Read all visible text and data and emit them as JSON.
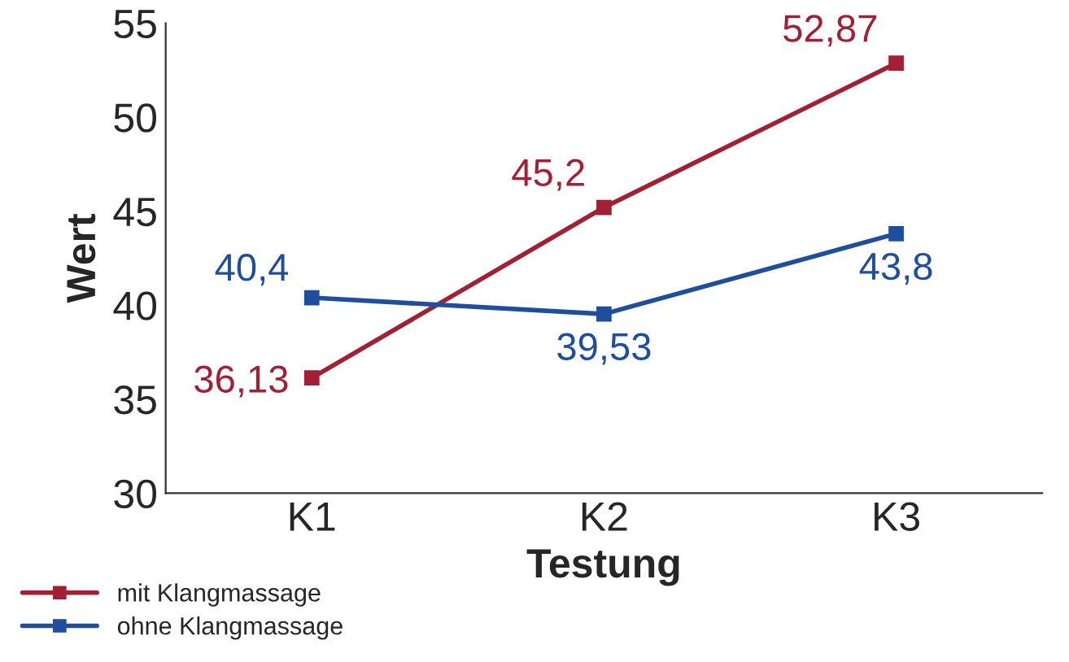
{
  "chart_data": {
    "type": "line",
    "xlabel": "Testung",
    "ylabel": "Wert",
    "categories": [
      "K1",
      "K2",
      "K3"
    ],
    "series": [
      {
        "name": "mit Klangmassage",
        "color": "#a31f34",
        "values": [
          36.13,
          45.2,
          52.87
        ],
        "value_labels": [
          "36,13",
          "45,2",
          "52,87"
        ]
      },
      {
        "name": "ohne Klangmassage",
        "color": "#1f4e9f",
        "values": [
          40.4,
          39.53,
          43.8
        ],
        "value_labels": [
          "40,4",
          "39,53",
          "43,8"
        ]
      }
    ],
    "ylim": [
      30,
      55
    ],
    "yticks": [
      30,
      35,
      40,
      45,
      50,
      55
    ],
    "grid": false,
    "legend": "bottom left",
    "marker": "square",
    "line_style": "solid"
  }
}
